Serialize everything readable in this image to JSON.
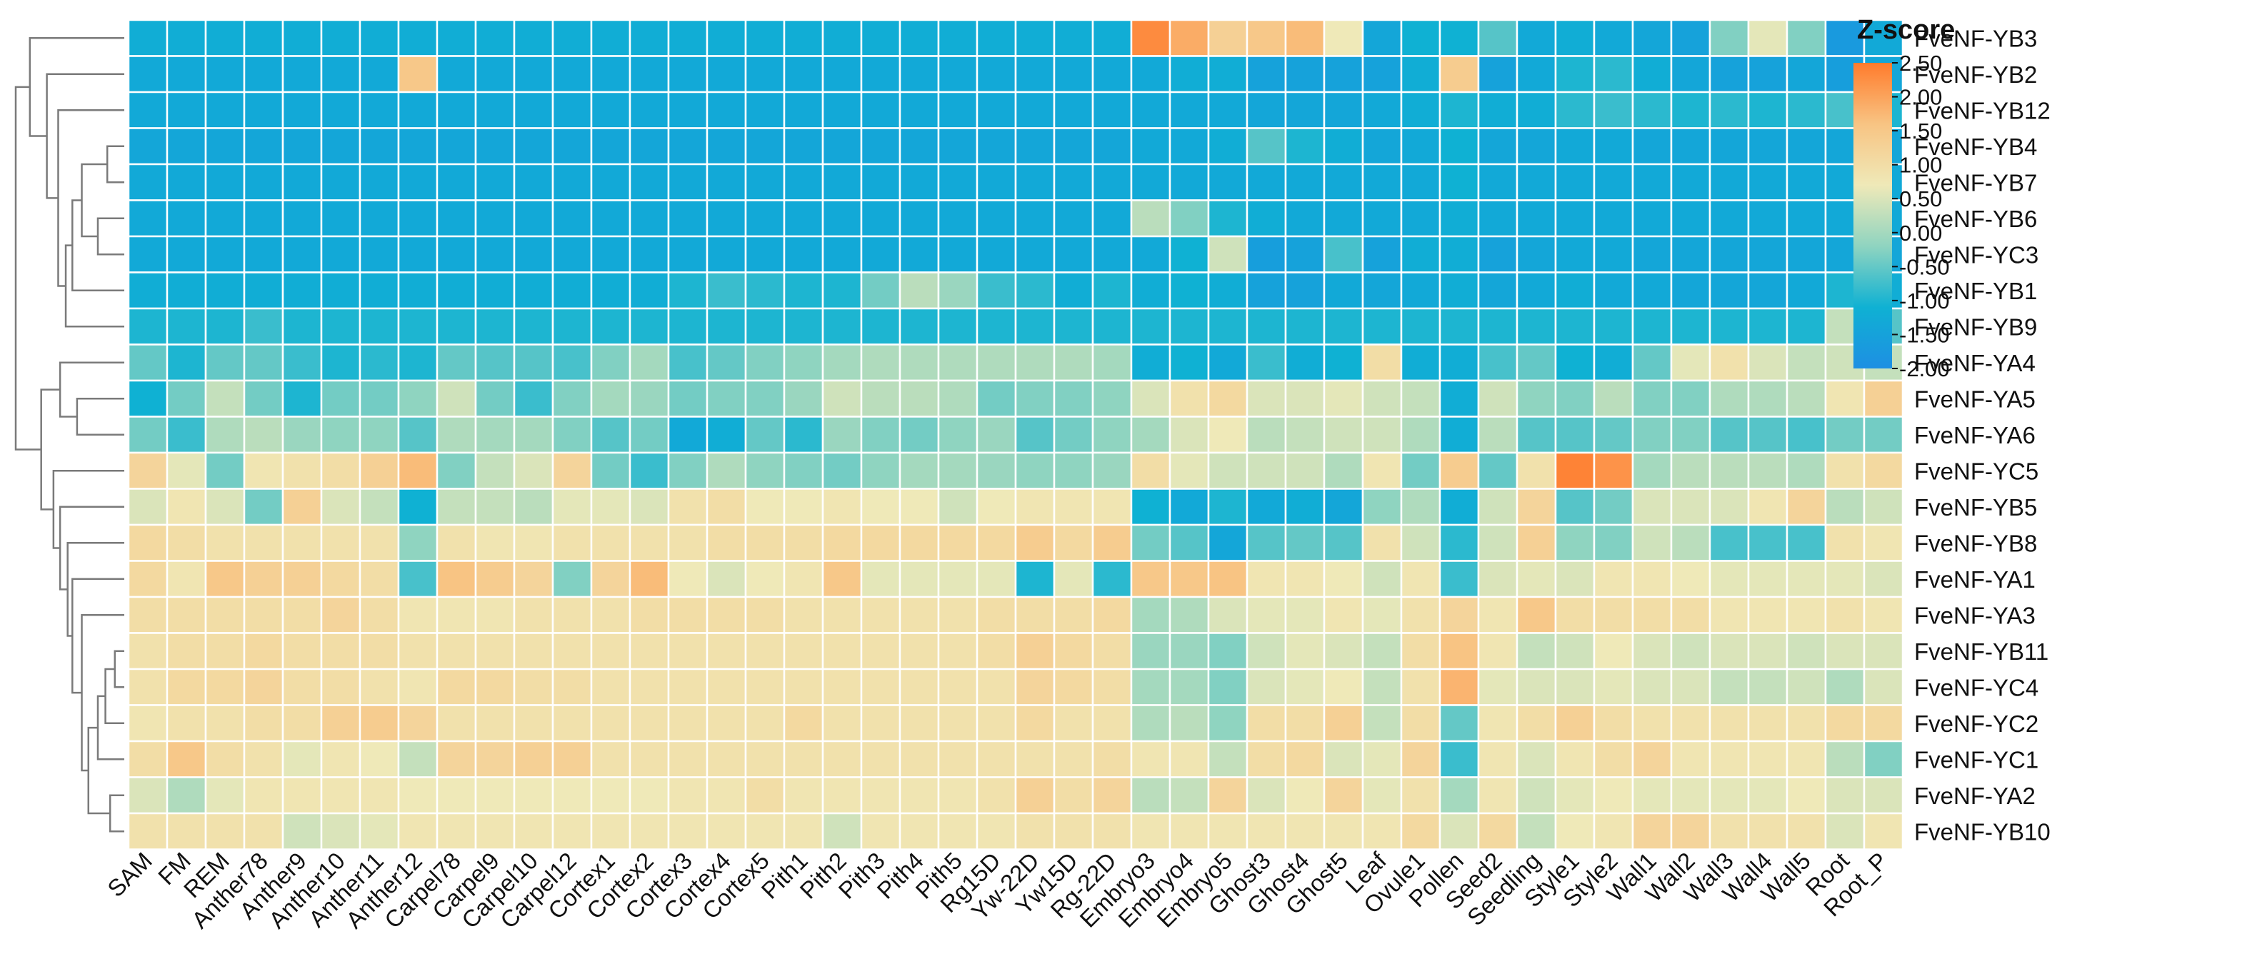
{
  "chart_data": {
    "type": "heatmap",
    "title": "",
    "xlabel": "",
    "ylabel": "",
    "legend": {
      "title": "Z-score",
      "min": -2.0,
      "max": 2.5,
      "ticks": [
        "2.50",
        "2.00",
        "1.50",
        "1.00",
        "0.50",
        "0.00",
        "-0.50",
        "-1.00",
        "-1.50",
        "-2.00"
      ],
      "placement": "top-right",
      "colors": [
        "#1E8FE3",
        "#0FB1D3",
        "#8FD4C0",
        "#EFE9B8",
        "#F8C483",
        "#FF7B2C"
      ]
    },
    "columns": [
      "SAM",
      "FM",
      "REM",
      "Anther78",
      "Anther9",
      "Anther10",
      "Anther11",
      "Anther12",
      "Carpel78",
      "Carpel9",
      "Carpel10",
      "Carpel12",
      "Cortex1",
      "Cortex2",
      "Cortex3",
      "Cortex4",
      "Cortex5",
      "Pith1",
      "Pith2",
      "Pith3",
      "Pith4",
      "Pith5",
      "Rg15D",
      "Yw-22D",
      "Yw15D",
      "Rg-22D",
      "Embryo3",
      "Embryo4",
      "Embryo5",
      "Ghost3",
      "Ghost4",
      "Ghost5",
      "Leaf",
      "Ovule1",
      "Pollen",
      "Seed2",
      "Seedling",
      "Style1",
      "Style2",
      "Wall1",
      "Wall2",
      "Wall3",
      "Wall4",
      "Wall5",
      "Root",
      "Root_P"
    ],
    "rows": [
      "FveNF-YB3",
      "FveNF-YB2",
      "FveNF-YB12",
      "FveNF-YB4",
      "FveNF-YB7",
      "FveNF-YB6",
      "FveNF-YC3",
      "FveNF-YB1",
      "FveNF-YB9",
      "FveNF-YA4",
      "FveNF-YA5",
      "FveNF-YA6",
      "FveNF-YC5",
      "FveNF-YB5",
      "FveNF-YB8",
      "FveNF-YA1",
      "FveNF-YA3",
      "FveNF-YB11",
      "FveNF-YC4",
      "FveNF-YC2",
      "FveNF-YC1",
      "FveNF-YA2",
      "FveNF-YB10"
    ],
    "values": [
      [
        -1.2,
        -1.2,
        -1.2,
        -1.2,
        -1.2,
        -1.2,
        -1.2,
        -1.2,
        -1.2,
        -1.2,
        -1.2,
        -1.2,
        -1.2,
        -1.2,
        -1.2,
        -1.2,
        -1.2,
        -1.2,
        -1.2,
        -1.2,
        -1.2,
        -1.2,
        -1.2,
        -1.2,
        -1.2,
        -1.2,
        2.3,
        1.9,
        1.3,
        1.5,
        1.7,
        0.7,
        -1.4,
        -1.1,
        -1.1,
        -0.6,
        -1.3,
        -1.2,
        -1.3,
        -1.4,
        -1.5,
        -0.3,
        0.6,
        -0.3,
        -1.7,
        -1.3
      ],
      [
        -1.3,
        -1.3,
        -1.3,
        -1.3,
        -1.3,
        -1.3,
        -1.3,
        1.5,
        -1.3,
        -1.3,
        -1.3,
        -1.3,
        -1.3,
        -1.3,
        -1.3,
        -1.3,
        -1.3,
        -1.3,
        -1.3,
        -1.3,
        -1.3,
        -1.3,
        -1.3,
        -1.3,
        -1.3,
        -1.3,
        -1.3,
        -1.2,
        -1.2,
        -1.5,
        -1.5,
        -1.5,
        -1.5,
        -1.2,
        1.4,
        -1.5,
        -1.3,
        -1.0,
        -0.9,
        -1.2,
        -1.4,
        -1.5,
        -1.5,
        -1.4,
        -1.6,
        -1.4
      ],
      [
        -1.3,
        -1.3,
        -1.3,
        -1.3,
        -1.3,
        -1.3,
        -1.3,
        -1.3,
        -1.3,
        -1.3,
        -1.3,
        -1.3,
        -1.3,
        -1.3,
        -1.3,
        -1.3,
        -1.3,
        -1.3,
        -1.3,
        -1.3,
        -1.3,
        -1.3,
        -1.3,
        -1.3,
        -1.3,
        -1.3,
        -1.3,
        -1.3,
        -1.3,
        -1.4,
        -1.4,
        -1.4,
        -1.3,
        -1.2,
        -1.0,
        -1.2,
        -1.2,
        -0.9,
        -0.8,
        -0.9,
        -1.0,
        -0.9,
        -1.0,
        -0.9,
        -0.7,
        -1.0
      ],
      [
        -1.4,
        -1.4,
        -1.4,
        -1.4,
        -1.4,
        -1.4,
        -1.4,
        -1.4,
        -1.4,
        -1.4,
        -1.4,
        -1.4,
        -1.4,
        -1.4,
        -1.4,
        -1.4,
        -1.4,
        -1.4,
        -1.4,
        -1.4,
        -1.4,
        -1.4,
        -1.4,
        -1.4,
        -1.4,
        -1.4,
        -1.3,
        -1.3,
        -1.2,
        -0.6,
        -1.0,
        -1.2,
        -1.4,
        -1.3,
        -1.1,
        -1.4,
        -1.4,
        -1.3,
        -1.3,
        -1.4,
        -1.4,
        -1.4,
        -1.4,
        -1.4,
        -1.4,
        -1.4
      ],
      [
        -1.3,
        -1.3,
        -1.3,
        -1.3,
        -1.3,
        -1.3,
        -1.3,
        -1.3,
        -1.3,
        -1.3,
        -1.3,
        -1.3,
        -1.3,
        -1.3,
        -1.3,
        -1.3,
        -1.3,
        -1.3,
        -1.3,
        -1.3,
        -1.3,
        -1.3,
        -1.3,
        -1.3,
        -1.3,
        -1.3,
        -1.3,
        -1.3,
        -1.3,
        -1.3,
        -1.3,
        -1.3,
        -1.3,
        -1.3,
        -1.1,
        -1.3,
        -1.3,
        -1.3,
        -1.3,
        -1.3,
        -1.3,
        -1.3,
        -1.3,
        -1.3,
        -1.3,
        -1.3
      ],
      [
        -1.3,
        -1.3,
        -1.3,
        -1.3,
        -1.3,
        -1.3,
        -1.3,
        -1.3,
        -1.3,
        -1.3,
        -1.3,
        -1.3,
        -1.3,
        -1.3,
        -1.3,
        -1.3,
        -1.3,
        -1.3,
        -1.3,
        -1.3,
        -1.3,
        -1.3,
        -1.3,
        -1.3,
        -1.3,
        -1.3,
        0.2,
        -0.3,
        -1.0,
        -1.2,
        -1.3,
        -1.3,
        -1.3,
        -1.3,
        -1.2,
        -1.3,
        -1.3,
        -1.3,
        -1.3,
        -1.3,
        -1.3,
        -1.3,
        -1.3,
        -1.3,
        -1.3,
        -1.3
      ],
      [
        -1.3,
        -1.3,
        -1.3,
        -1.3,
        -1.3,
        -1.3,
        -1.3,
        -1.3,
        -1.3,
        -1.3,
        -1.3,
        -1.3,
        -1.3,
        -1.3,
        -1.3,
        -1.3,
        -1.3,
        -1.3,
        -1.3,
        -1.3,
        -1.3,
        -1.3,
        -1.3,
        -1.3,
        -1.3,
        -1.3,
        -1.3,
        -1.1,
        0.4,
        -1.6,
        -1.5,
        -0.7,
        -1.5,
        -1.2,
        -1.2,
        -1.5,
        -1.4,
        -1.3,
        -1.3,
        -1.4,
        -1.4,
        -1.4,
        -1.4,
        -1.4,
        -1.4,
        -1.4
      ],
      [
        -1.2,
        -1.2,
        -1.2,
        -1.2,
        -1.2,
        -1.2,
        -1.2,
        -1.2,
        -1.2,
        -1.2,
        -1.2,
        -1.2,
        -1.2,
        -1.2,
        -1.0,
        -0.8,
        -0.9,
        -1.0,
        -1.0,
        -0.4,
        0.2,
        -0.1,
        -0.8,
        -0.9,
        -1.2,
        -1.0,
        -1.2,
        -1.1,
        -1.2,
        -1.5,
        -1.5,
        -1.3,
        -1.4,
        -1.3,
        -1.2,
        -1.4,
        -1.3,
        -1.2,
        -1.3,
        -1.3,
        -1.4,
        -1.4,
        -1.4,
        -1.3,
        -1.0,
        -1.2
      ],
      [
        -1.0,
        -1.0,
        -1.0,
        -0.8,
        -1.0,
        -1.0,
        -1.0,
        -1.0,
        -1.0,
        -1.0,
        -1.0,
        -1.0,
        -1.0,
        -1.0,
        -1.0,
        -1.0,
        -1.0,
        -1.0,
        -1.0,
        -1.0,
        -1.0,
        -1.0,
        -1.0,
        -1.0,
        -1.0,
        -1.0,
        -1.0,
        -1.0,
        -1.0,
        -1.0,
        -1.0,
        -1.0,
        -1.0,
        -1.0,
        -1.0,
        -1.0,
        -1.0,
        -1.0,
        -1.0,
        -1.0,
        -1.0,
        -1.0,
        -1.0,
        -1.0,
        0.3,
        -0.6
      ],
      [
        -0.5,
        -1.0,
        -0.5,
        -0.5,
        -0.8,
        -1.0,
        -0.9,
        -1.0,
        -0.5,
        -0.6,
        -0.6,
        -0.7,
        -0.3,
        0.0,
        -0.7,
        -0.5,
        -0.3,
        -0.2,
        0.0,
        0.1,
        0.1,
        0.1,
        0.1,
        0.1,
        0.1,
        0.0,
        -1.2,
        -1.1,
        -1.3,
        -0.8,
        -1.2,
        -1.1,
        1.0,
        -1.2,
        -1.2,
        -0.7,
        -0.5,
        -1.1,
        -1.2,
        -0.5,
        0.6,
        0.9,
        0.5,
        0.3,
        0.4,
        0.3
      ],
      [
        -1.1,
        -0.4,
        0.3,
        -0.4,
        -1.0,
        -0.4,
        -0.4,
        -0.2,
        0.4,
        -0.4,
        -0.8,
        -0.3,
        0.0,
        -0.1,
        -0.4,
        -0.3,
        -0.3,
        -0.1,
        0.4,
        0.2,
        0.2,
        0.1,
        -0.4,
        -0.3,
        -0.3,
        -0.2,
        0.5,
        0.9,
        1.1,
        0.5,
        0.5,
        0.6,
        0.4,
        0.3,
        -1.2,
        0.4,
        -0.2,
        -0.3,
        0.2,
        -0.3,
        -0.3,
        0.1,
        0.1,
        0.2,
        0.8,
        1.3
      ],
      [
        -0.4,
        -0.8,
        0.1,
        0.2,
        -0.1,
        -0.2,
        -0.2,
        -0.6,
        0.1,
        0.0,
        0.0,
        -0.3,
        -0.6,
        -0.4,
        -1.3,
        -1.2,
        -0.5,
        -0.9,
        -0.1,
        -0.3,
        -0.4,
        -0.2,
        -0.1,
        -0.6,
        -0.4,
        -0.2,
        0.0,
        0.5,
        0.7,
        0.2,
        0.3,
        0.4,
        0.4,
        0.1,
        -1.2,
        0.2,
        -0.6,
        -0.6,
        -0.5,
        -0.3,
        -0.3,
        -0.6,
        -0.6,
        -0.7,
        -0.4,
        -0.4
      ],
      [
        1.2,
        0.6,
        -0.4,
        0.8,
        0.9,
        1.0,
        1.3,
        1.7,
        -0.3,
        0.3,
        0.5,
        1.2,
        -0.4,
        -0.8,
        -0.3,
        0.1,
        -0.2,
        -0.3,
        -0.4,
        -0.2,
        0.0,
        0.0,
        -0.1,
        -0.2,
        -0.2,
        -0.1,
        1.0,
        0.6,
        0.4,
        0.4,
        0.4,
        0.1,
        0.8,
        -0.4,
        1.4,
        -0.5,
        0.9,
        2.4,
        2.2,
        0.0,
        0.2,
        0.2,
        0.2,
        0.1,
        0.9,
        1.1
      ],
      [
        0.5,
        0.8,
        0.5,
        -0.4,
        1.3,
        0.5,
        0.3,
        -1.1,
        0.3,
        0.3,
        0.2,
        0.6,
        0.6,
        0.5,
        0.9,
        1.0,
        0.7,
        0.7,
        0.8,
        0.7,
        0.7,
        0.4,
        0.7,
        0.8,
        0.8,
        0.8,
        -1.1,
        -1.3,
        -1.0,
        -1.3,
        -1.2,
        -1.4,
        -0.2,
        0.1,
        -1.2,
        0.4,
        1.2,
        -0.6,
        -0.4,
        0.5,
        0.5,
        0.5,
        0.8,
        1.2,
        0.2,
        0.4
      ],
      [
        1.1,
        1.0,
        0.9,
        0.9,
        0.9,
        0.9,
        0.9,
        -0.2,
        0.9,
        0.8,
        0.8,
        0.9,
        0.9,
        0.9,
        0.9,
        1.0,
        1.0,
        1.0,
        1.1,
        1.1,
        1.1,
        1.1,
        1.1,
        1.4,
        1.1,
        1.4,
        -0.4,
        -0.6,
        -1.4,
        -0.6,
        -0.5,
        -0.6,
        0.9,
        0.4,
        -0.9,
        0.4,
        1.3,
        -0.2,
        -0.3,
        0.4,
        0.2,
        -0.7,
        -0.7,
        -0.7,
        0.9,
        0.8
      ],
      [
        1.1,
        0.8,
        1.5,
        1.3,
        1.3,
        1.1,
        1.0,
        -0.7,
        1.6,
        1.4,
        1.2,
        -0.3,
        1.2,
        1.7,
        0.7,
        0.5,
        0.7,
        0.8,
        1.5,
        0.6,
        0.6,
        0.6,
        0.6,
        -1.0,
        0.6,
        -0.9,
        1.5,
        1.5,
        1.6,
        0.8,
        0.8,
        0.7,
        0.4,
        0.8,
        -0.8,
        0.5,
        0.6,
        0.5,
        0.8,
        0.8,
        0.7,
        0.6,
        0.6,
        0.6,
        0.6,
        0.5
      ],
      [
        1.0,
        1.0,
        1.0,
        1.0,
        1.0,
        1.2,
        1.0,
        0.8,
        0.8,
        0.8,
        0.9,
        0.9,
        0.9,
        1.0,
        1.0,
        1.0,
        1.0,
        0.9,
        0.9,
        0.9,
        0.9,
        0.9,
        1.0,
        1.0,
        1.0,
        1.1,
        0.0,
        0.1,
        0.5,
        0.6,
        0.6,
        0.8,
        0.6,
        0.9,
        1.2,
        0.8,
        1.5,
        1.0,
        1.0,
        1.0,
        1.0,
        0.8,
        0.8,
        0.8,
        0.9,
        0.8
      ],
      [
        0.9,
        1.0,
        1.0,
        1.1,
        1.0,
        1.0,
        1.0,
        0.9,
        0.9,
        0.9,
        0.9,
        0.9,
        0.9,
        0.9,
        0.9,
        0.9,
        0.9,
        0.9,
        0.9,
        0.9,
        0.9,
        0.9,
        1.0,
        1.3,
        1.1,
        1.0,
        -0.1,
        -0.1,
        -0.3,
        0.4,
        0.6,
        0.5,
        0.3,
        1.0,
        1.6,
        0.8,
        0.3,
        0.4,
        0.7,
        0.5,
        0.4,
        0.5,
        0.5,
        0.4,
        0.5,
        0.5
      ],
      [
        0.9,
        1.1,
        1.1,
        1.2,
        1.0,
        1.0,
        0.9,
        0.8,
        1.1,
        1.1,
        1.0,
        1.0,
        0.9,
        0.9,
        0.9,
        0.9,
        0.9,
        0.9,
        0.9,
        0.9,
        0.9,
        0.9,
        0.9,
        1.2,
        1.1,
        1.0,
        0.0,
        0.0,
        -0.3,
        0.5,
        0.6,
        0.7,
        0.3,
        0.9,
        1.8,
        0.6,
        0.5,
        0.5,
        0.6,
        0.5,
        0.5,
        0.3,
        0.3,
        0.4,
        0.1,
        0.5
      ],
      [
        0.8,
        0.9,
        0.9,
        1.0,
        1.0,
        1.3,
        1.4,
        1.2,
        0.9,
        0.9,
        0.9,
        0.9,
        0.9,
        0.9,
        0.9,
        0.9,
        0.9,
        1.1,
        0.9,
        0.9,
        0.9,
        0.9,
        0.9,
        1.1,
        0.9,
        0.9,
        0.1,
        0.2,
        -0.2,
        1.0,
        1.0,
        1.3,
        0.3,
        1.0,
        -0.5,
        0.8,
        1.0,
        1.3,
        1.0,
        0.9,
        0.9,
        0.9,
        0.9,
        0.9,
        1.1,
        1.1
      ],
      [
        1.0,
        1.5,
        1.0,
        0.9,
        0.6,
        0.8,
        0.7,
        0.3,
        1.2,
        1.2,
        1.3,
        1.3,
        0.9,
        0.9,
        0.9,
        0.9,
        0.9,
        0.9,
        0.9,
        0.9,
        0.9,
        0.9,
        0.9,
        0.9,
        0.9,
        1.0,
        0.8,
        0.8,
        0.3,
        1.0,
        1.1,
        0.5,
        0.6,
        1.2,
        -0.8,
        0.8,
        0.5,
        0.8,
        1.0,
        1.2,
        0.8,
        0.8,
        0.8,
        0.8,
        0.2,
        -0.3
      ],
      [
        0.5,
        0.1,
        0.6,
        0.8,
        0.8,
        0.8,
        0.8,
        0.7,
        0.7,
        0.7,
        0.7,
        0.7,
        0.7,
        0.7,
        0.8,
        0.8,
        1.0,
        0.8,
        0.8,
        0.8,
        0.8,
        0.8,
        0.9,
        1.3,
        1.0,
        1.2,
        0.2,
        0.3,
        1.2,
        0.5,
        0.7,
        1.2,
        0.6,
        0.9,
        0.0,
        0.8,
        0.4,
        0.6,
        0.7,
        0.6,
        0.6,
        0.6,
        0.6,
        0.7,
        0.5,
        0.5
      ],
      [
        0.9,
        0.9,
        0.9,
        0.9,
        0.4,
        0.5,
        0.6,
        0.8,
        0.8,
        0.8,
        0.8,
        0.8,
        0.8,
        0.8,
        0.8,
        0.8,
        0.8,
        0.8,
        0.4,
        0.8,
        0.8,
        0.8,
        0.8,
        0.9,
        0.9,
        0.9,
        0.8,
        0.8,
        0.8,
        0.8,
        0.8,
        0.8,
        0.8,
        1.1,
        0.5,
        1.1,
        0.3,
        0.7,
        0.8,
        1.2,
        1.2,
        0.9,
        0.9,
        0.9,
        0.5,
        0.8
      ]
    ],
    "dendrogram": {
      "leaves": [
        "FveNF-YB3",
        "FveNF-YB2",
        "FveNF-YB12",
        "FveNF-YB4",
        "FveNF-YB7",
        "FveNF-YB6",
        "FveNF-YC3",
        "FveNF-YB1",
        "FveNF-YB9",
        "FveNF-YA4",
        "FveNF-YA5",
        "FveNF-YA6",
        "FveNF-YC5",
        "FveNF-YB5",
        "FveNF-YB8",
        "FveNF-YA1",
        "FveNF-YA3",
        "FveNF-YB11",
        "FveNF-YC4",
        "FveNF-YC2",
        "FveNF-YC1",
        "FveNF-YA2",
        "FveNF-YB10"
      ],
      "merges": [
        [
          3,
          4,
          0.18
        ],
        [
          5,
          6,
          0.28
        ],
        [
          23,
          24,
          0.45
        ],
        [
          25,
          7,
          0.55
        ],
        [
          8,
          26,
          0.62
        ],
        [
          2,
          27,
          0.7
        ],
        [
          1,
          28,
          0.82
        ],
        [
          0,
          29,
          1.0
        ],
        [
          10,
          11,
          0.5
        ],
        [
          9,
          31,
          0.68
        ],
        [
          17,
          18,
          0.1
        ],
        [
          33,
          19,
          0.2
        ],
        [
          34,
          20,
          0.28
        ],
        [
          21,
          22,
          0.15
        ],
        [
          35,
          36,
          0.38
        ],
        [
          16,
          37,
          0.45
        ],
        [
          15,
          38,
          0.55
        ],
        [
          14,
          39,
          0.6
        ],
        [
          13,
          40,
          0.68
        ],
        [
          12,
          41,
          0.75
        ],
        [
          32,
          42,
          0.88
        ],
        [
          30,
          43,
          1.15
        ]
      ]
    }
  }
}
